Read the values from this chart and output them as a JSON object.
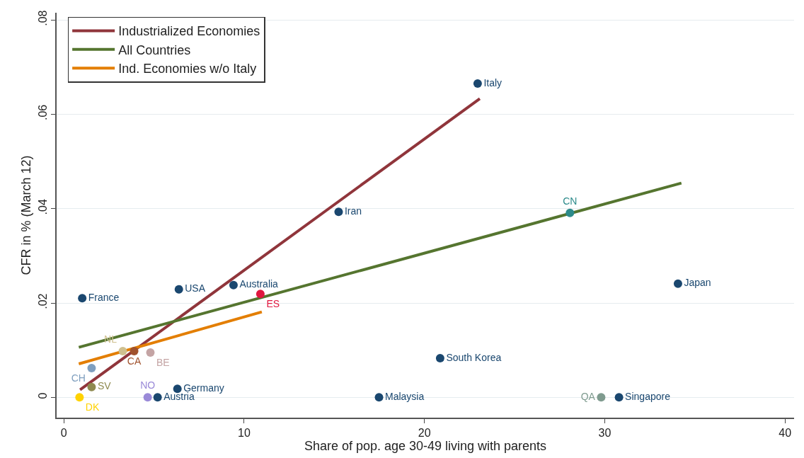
{
  "chart_data": {
    "type": "scatter",
    "xlabel": "Share of pop. age 30-49 living with parents",
    "ylabel": "CFR in % (March 12)",
    "xlim": [
      -0.4,
      40.5
    ],
    "xticks": [
      0,
      10,
      20,
      30,
      40
    ],
    "ylim": [
      -0.0043,
      0.0815
    ],
    "yticks": [
      {
        "value": 0,
        "label": "0"
      },
      {
        "value": 0.02,
        "label": ".02"
      },
      {
        "value": 0.04,
        "label": ".04"
      },
      {
        "value": 0.06,
        "label": ".06"
      },
      {
        "value": 0.08,
        "label": ".08"
      }
    ],
    "grid": "y",
    "legend": "top left",
    "marker": "circle",
    "series": [
      {
        "name": "Industrialized Economies",
        "type": "line",
        "marker": "none",
        "color": "#90353b",
        "x": [
          0.9,
          23.07
        ],
        "values": [
          0.0016,
          0.0633
        ]
      },
      {
        "name": "All Countries",
        "type": "line",
        "marker": "none",
        "color": "#55752f",
        "x": [
          0.83,
          34.25
        ],
        "values": [
          0.0106,
          0.0454
        ]
      },
      {
        "name": "Ind. Economies w/o Italy",
        "type": "line",
        "marker": "none",
        "color": "#e37e00",
        "x": [
          0.83,
          10.98
        ],
        "values": [
          0.0071,
          0.0181
        ]
      },
      {
        "name": "Italy",
        "color": "#1a476f",
        "x": [
          22.95
        ],
        "values": [
          0.0665
        ]
      },
      {
        "name": "CN",
        "color": "#2d8b8b",
        "x": [
          28.07
        ],
        "values": [
          0.0391
        ]
      },
      {
        "name": "Iran",
        "color": "#1a476f",
        "x": [
          15.24
        ],
        "values": [
          0.0393
        ]
      },
      {
        "name": "Japan",
        "color": "#1a476f",
        "x": [
          34.06
        ],
        "values": [
          0.0241
        ]
      },
      {
        "name": "France",
        "color": "#1a476f",
        "x": [
          1.02
        ],
        "values": [
          0.021
        ]
      },
      {
        "name": "USA",
        "color": "#1a476f",
        "x": [
          6.38
        ],
        "values": [
          0.0229
        ]
      },
      {
        "name": "Australia",
        "color": "#1a476f",
        "x": [
          9.41
        ],
        "values": [
          0.0238
        ]
      },
      {
        "name": "ES",
        "color": "#e0173f",
        "x": [
          10.9
        ],
        "values": [
          0.0219
        ]
      },
      {
        "name": "South Korea",
        "color": "#1a476f",
        "x": [
          20.87
        ],
        "values": [
          0.0083
        ]
      },
      {
        "name": "Malaysia",
        "color": "#1a476f",
        "x": [
          17.48
        ],
        "values": [
          0
        ]
      },
      {
        "name": "QA",
        "color": "#7f9b8f",
        "x": [
          29.8
        ],
        "values": [
          0
        ]
      },
      {
        "name": "Singapore",
        "color": "#1a476f",
        "x": [
          30.79
        ],
        "values": [
          0
        ]
      },
      {
        "name": "Germany",
        "color": "#1a476f",
        "x": [
          6.3
        ],
        "values": [
          0.0018
        ]
      },
      {
        "name": "Austria",
        "color": "#1a476f",
        "x": [
          5.2
        ],
        "values": [
          0
        ]
      },
      {
        "name": "NO",
        "color": "#9a8ad8",
        "x": [
          4.65
        ],
        "values": [
          0
        ]
      },
      {
        "name": "DK",
        "color": "#ffd200",
        "x": [
          0.87
        ],
        "values": [
          0
        ]
      },
      {
        "name": "SV",
        "color": "#8f8a50",
        "x": [
          1.54
        ],
        "values": [
          0.0022
        ]
      },
      {
        "name": "CH",
        "color": "#7f9fbf",
        "x": [
          1.54
        ],
        "values": [
          0.0062
        ]
      },
      {
        "name": "NL",
        "color": "#cfc08f",
        "x": [
          3.27
        ],
        "values": [
          0.0098
        ]
      },
      {
        "name": "CA",
        "color": "#a0522d",
        "x": [
          3.9
        ],
        "values": [
          0.0098
        ]
      },
      {
        "name": "BE",
        "color": "#c4a4a4",
        "x": [
          4.8
        ],
        "values": [
          0.0095
        ]
      }
    ]
  }
}
